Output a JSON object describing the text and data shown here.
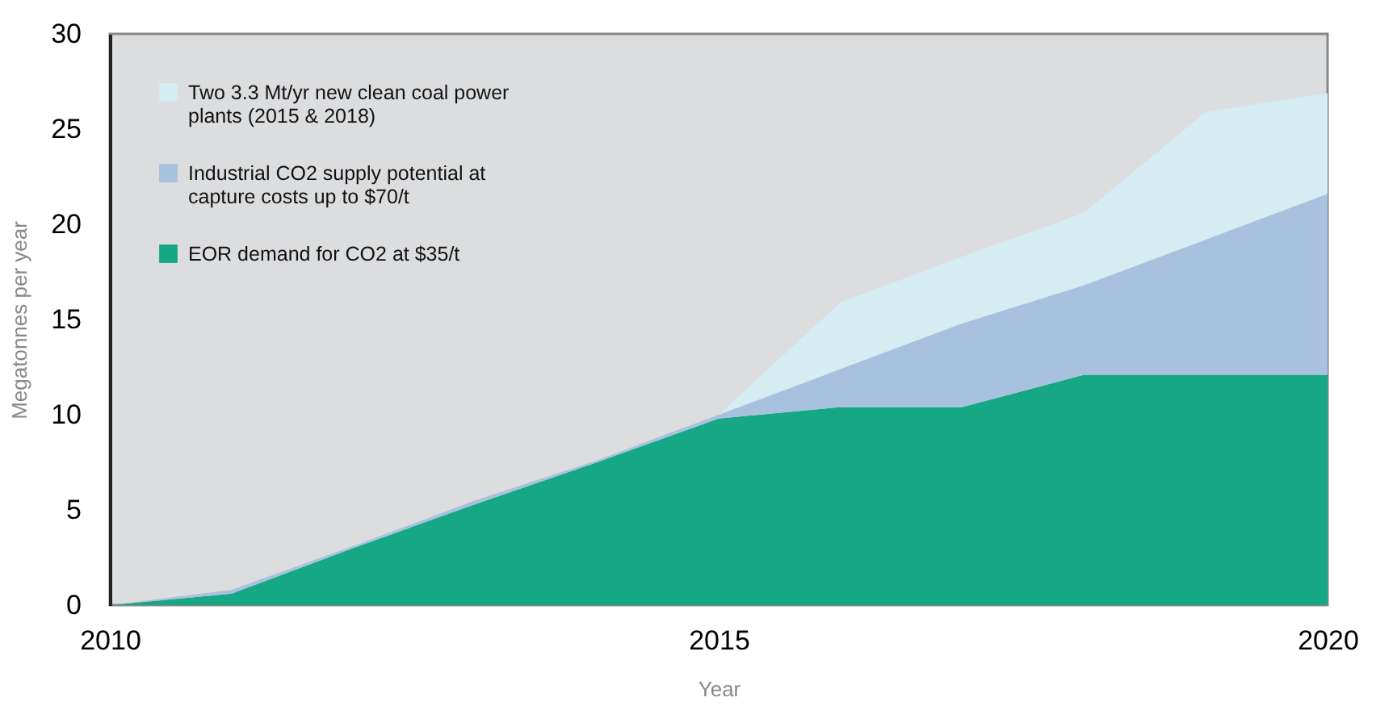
{
  "chart_data": {
    "type": "area",
    "stacked": true,
    "xlabel": "Year",
    "ylabel": "Megatonnes per year",
    "x": [
      2010,
      2011,
      2012,
      2013,
      2014,
      2015,
      2016,
      2017,
      2018,
      2019,
      2020
    ],
    "xlim": [
      2010,
      2020
    ],
    "xticks": [
      2010,
      2015,
      2020
    ],
    "ylim": [
      0,
      30
    ],
    "yticks": [
      0,
      5,
      10,
      15,
      20,
      25,
      30
    ],
    "legend": "top left",
    "series": [
      {
        "name": "EOR demand for CO2 at $35/t",
        "color": "#16a884",
        "values": [
          0,
          0.6,
          3.0,
          5.3,
          7.5,
          9.8,
          10.4,
          10.4,
          12.1,
          12.1,
          12.1
        ]
      },
      {
        "name": "Industrial CO2 supply potential at capture costs up to $70/t",
        "color": "#a8c1df",
        "values": [
          0,
          0.2,
          0.1,
          0.2,
          0.1,
          0.2,
          2.0,
          4.4,
          4.7,
          7.1,
          9.5
        ]
      },
      {
        "name": "Two 3.3 Mt/yr new clean coal power plants (2015 & 2018)",
        "color": "#d4ecf2",
        "values": [
          0,
          0,
          0,
          0,
          0,
          0,
          3.5,
          3.5,
          3.8,
          6.7,
          5.3
        ]
      }
    ]
  }
}
